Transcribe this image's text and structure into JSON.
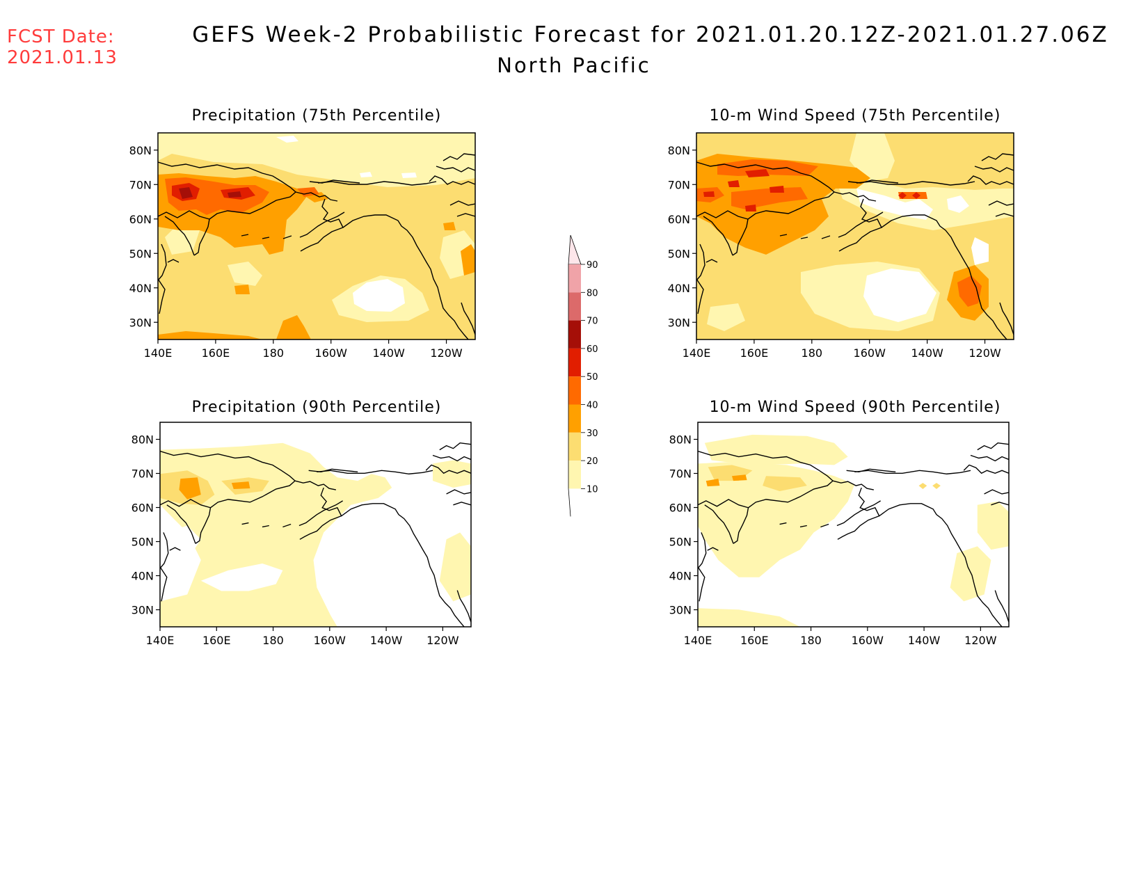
{
  "header": {
    "fcst_label": "FCST Date:",
    "fcst_date": "2021.01.13",
    "title": "GEFS Week-2 Probabilistic Forecast for 2021.01.20.12Z-2021.01.27.06Z",
    "region": "North Pacific"
  },
  "panels": [
    {
      "title": "Precipitation (75th Percentile)"
    },
    {
      "title": "10-m Wind Speed (75th Percentile)"
    },
    {
      "title": "Precipitation (90th Percentile)"
    },
    {
      "title": "10-m Wind Speed (90th Percentile)"
    }
  ],
  "axes": {
    "lat_labels": [
      "80N",
      "70N",
      "60N",
      "50N",
      "40N",
      "30N"
    ],
    "lon_labels": [
      "140E",
      "160E",
      "180",
      "160W",
      "140W",
      "120W"
    ]
  },
  "colorbar": {
    "labels": [
      "90",
      "80",
      "70",
      "60",
      "50",
      "40",
      "30",
      "20",
      "10"
    ],
    "bins": [
      {
        "range": "90+",
        "color": "#fde6ea"
      },
      {
        "range": "80-90",
        "color": "#f0a3a8"
      },
      {
        "range": "70-80",
        "color": "#dc6a6a"
      },
      {
        "range": "60-70",
        "color": "#a50f08"
      },
      {
        "range": "50-60",
        "color": "#e11e00"
      },
      {
        "range": "40-50",
        "color": "#ff6a00"
      },
      {
        "range": "30-40",
        "color": "#ffa000"
      },
      {
        "range": "20-30",
        "color": "#fcdd71"
      },
      {
        "range": "10-20",
        "color": "#fff6b0"
      }
    ]
  },
  "chart_data": [
    {
      "type": "heatmap",
      "title": "Precipitation (75th Percentile)",
      "x_range": [
        "140E",
        "110W"
      ],
      "y_range": [
        "25N",
        "85N"
      ],
      "regions": [
        {
          "level": "10-20",
          "lon": 200,
          "lat": 60
        },
        {
          "level": "20-30",
          "lon": 175,
          "lat": 45
        },
        {
          "level": "30-40",
          "lon": 170,
          "lat": 57
        },
        {
          "level": "40-50",
          "lon": 165,
          "lat": 65
        },
        {
          "level": "50-60",
          "lon": 172,
          "lat": 65
        },
        {
          "level": "60-70",
          "lon": 151,
          "lat": 64
        },
        {
          "level": "<10",
          "lon": 212,
          "lat": 37
        }
      ]
    },
    {
      "type": "heatmap",
      "title": "10-m Wind Speed (75th Percentile)",
      "x_range": [
        "140E",
        "110W"
      ],
      "y_range": [
        "25N",
        "85N"
      ],
      "regions": [
        {
          "level": "10-20",
          "lon": 200,
          "lat": 35
        },
        {
          "level": "20-30",
          "lon": 180,
          "lat": 40
        },
        {
          "level": "30-40",
          "lon": 165,
          "lat": 55
        },
        {
          "level": "40-50",
          "lon": 165,
          "lat": 67
        },
        {
          "level": "50-60",
          "lon": 158,
          "lat": 61
        },
        {
          "level": "<10",
          "lon": 210,
          "lat": 38
        }
      ]
    },
    {
      "type": "heatmap",
      "title": "Precipitation (90th Percentile)",
      "x_range": [
        "140E",
        "110W"
      ],
      "y_range": [
        "25N",
        "85N"
      ],
      "regions": [
        {
          "level": "10-20",
          "lon": 180,
          "lat": 55
        },
        {
          "level": "20-30",
          "lon": 152,
          "lat": 65
        },
        {
          "level": "30-40",
          "lon": 152,
          "lat": 64
        },
        {
          "level": "<10",
          "lon": 215,
          "lat": 45
        }
      ]
    },
    {
      "type": "heatmap",
      "title": "10-m Wind Speed (90th Percentile)",
      "x_range": [
        "140E",
        "110W"
      ],
      "y_range": [
        "25N",
        "85N"
      ],
      "regions": [
        {
          "level": "10-20",
          "lon": 175,
          "lat": 50
        },
        {
          "level": "20-30",
          "lon": 160,
          "lat": 68
        },
        {
          "level": "30-40",
          "lon": 145,
          "lat": 65
        },
        {
          "level": "<10",
          "lon": 210,
          "lat": 40
        }
      ]
    }
  ]
}
